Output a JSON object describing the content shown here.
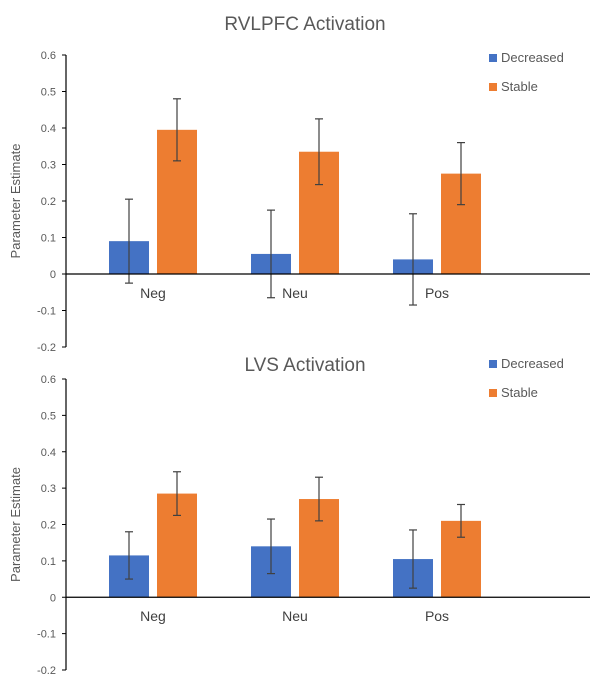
{
  "chart_data": [
    {
      "type": "bar",
      "title": "RVLPFC Activation",
      "xlabel": "",
      "ylabel": "Parameter Estimate",
      "categories": [
        "Neg",
        "Neu",
        "Pos"
      ],
      "ylim": [
        -0.2,
        0.6
      ],
      "yticks": [
        "0.6",
        "0.5",
        "0.4",
        "0.3",
        "0.2",
        "0.1",
        "0",
        "-0.1",
        "-0.2"
      ],
      "grid": false,
      "legend_position": "top-right",
      "series": [
        {
          "name": "Decreased",
          "color": "#4472C4",
          "values": [
            0.09,
            0.055,
            0.04
          ],
          "error": [
            0.115,
            0.12,
            0.125
          ]
        },
        {
          "name": "Stable",
          "color": "#ED7D31",
          "values": [
            0.395,
            0.335,
            0.275
          ],
          "error": [
            0.085,
            0.09,
            0.085
          ]
        }
      ]
    },
    {
      "type": "bar",
      "title": "LVS Activation",
      "xlabel": "",
      "ylabel": "Parameter Estimate",
      "categories": [
        "Neg",
        "Neu",
        "Pos"
      ],
      "ylim": [
        -0.2,
        0.6
      ],
      "yticks": [
        "0.6",
        "0.5",
        "0.4",
        "0.3",
        "0.2",
        "0.1",
        "0",
        "-0.1",
        "-0.2"
      ],
      "grid": false,
      "legend_position": "top-right",
      "series": [
        {
          "name": "Decreased",
          "color": "#4472C4",
          "values": [
            0.115,
            0.14,
            0.105
          ],
          "error": [
            0.065,
            0.075,
            0.08
          ]
        },
        {
          "name": "Stable",
          "color": "#ED7D31",
          "values": [
            0.285,
            0.27,
            0.21
          ],
          "error": [
            0.06,
            0.06,
            0.045
          ]
        }
      ]
    }
  ]
}
